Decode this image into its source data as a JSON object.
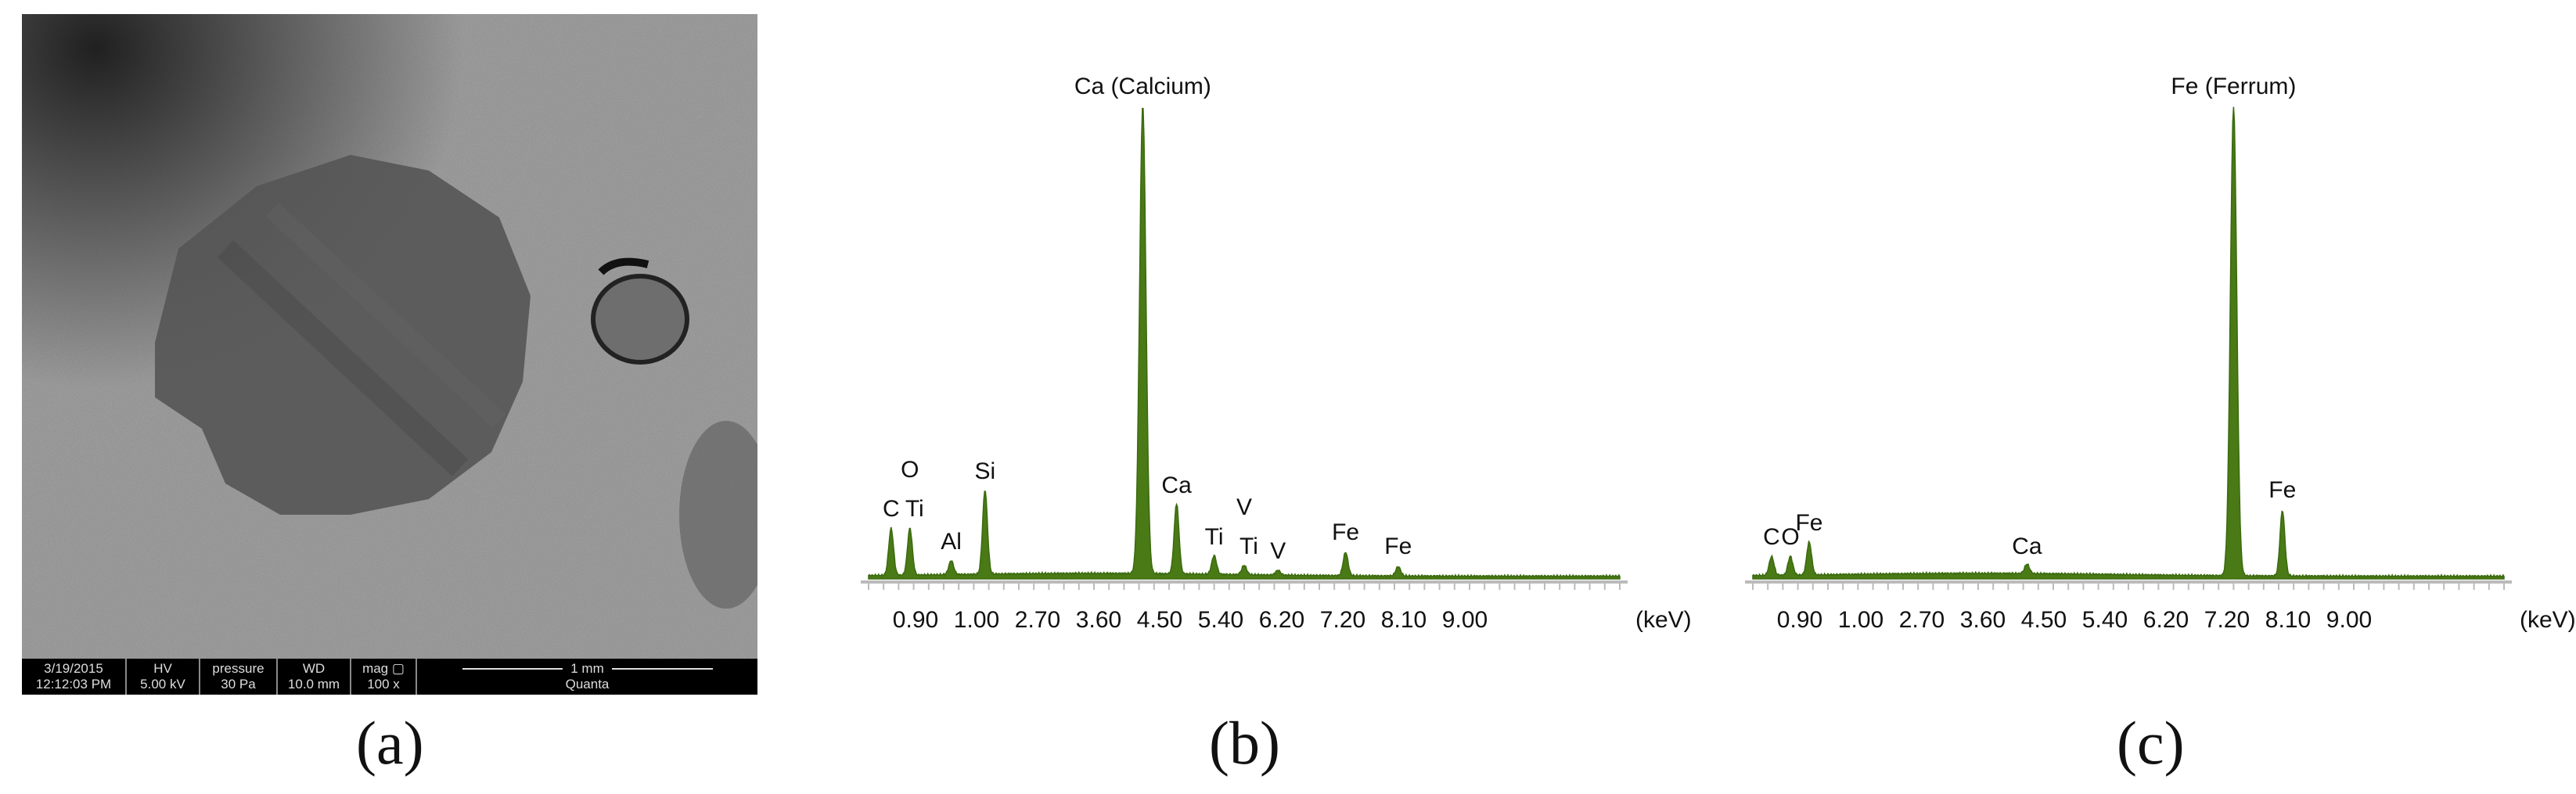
{
  "sem": {
    "date": "3/19/2015",
    "time": "12:12:03 PM",
    "hv_label": "HV",
    "hv_value": "5.00 kV",
    "pressure_label": "pressure",
    "pressure_value": "30 Pa",
    "wd_label": "WD",
    "wd_value": "10.0 mm",
    "mag_label": "mag ▢",
    "mag_value": "100 x",
    "scale_label": "1 mm",
    "instrument": "Quanta"
  },
  "panel_labels": [
    "(a)",
    "(b)",
    "(c)"
  ],
  "chart_data": [
    {
      "type": "line",
      "xlabel": "(keV)",
      "tick_labels": [
        "0.90",
        "1.00",
        "2.70",
        "3.60",
        "4.50",
        "5.40",
        "6.20",
        "7.20",
        "8.10",
        "9.00"
      ],
      "title": "",
      "color": "#4a7a16",
      "ylim": [
        0,
        100
      ],
      "peaks": [
        {
          "pos": 0.03,
          "height": 10,
          "label": "C"
        },
        {
          "pos": 0.055,
          "height": 10,
          "label": "O Ti"
        },
        {
          "pos": 0.11,
          "height": 3,
          "label": "Al"
        },
        {
          "pos": 0.155,
          "height": 18,
          "label": "Si"
        },
        {
          "pos": 0.365,
          "height": 100,
          "label": "Ca (Calcium)"
        },
        {
          "pos": 0.41,
          "height": 15,
          "label": "Ca"
        },
        {
          "pos": 0.46,
          "height": 4,
          "label": "Ti"
        },
        {
          "pos": 0.5,
          "height": 2,
          "label": "V Ti"
        },
        {
          "pos": 0.545,
          "height": 1,
          "label": "V"
        },
        {
          "pos": 0.635,
          "height": 5,
          "label": "Fe"
        },
        {
          "pos": 0.705,
          "height": 2,
          "label": "Fe"
        }
      ]
    },
    {
      "type": "line",
      "xlabel": "(keV)",
      "tick_labels": [
        "0.90",
        "1.00",
        "2.70",
        "3.60",
        "4.50",
        "5.40",
        "6.20",
        "7.20",
        "8.10",
        "9.00"
      ],
      "title": "",
      "color": "#4a7a16",
      "ylim": [
        0,
        100
      ],
      "peaks": [
        {
          "pos": 0.025,
          "height": 4,
          "label": "C"
        },
        {
          "pos": 0.05,
          "height": 4,
          "label": "O"
        },
        {
          "pos": 0.075,
          "height": 7,
          "label": "Fe"
        },
        {
          "pos": 0.365,
          "height": 2,
          "label": "Ca"
        },
        {
          "pos": 0.64,
          "height": 100,
          "label": "Fe (Ferrum)"
        },
        {
          "pos": 0.705,
          "height": 14,
          "label": "Fe"
        }
      ]
    }
  ]
}
